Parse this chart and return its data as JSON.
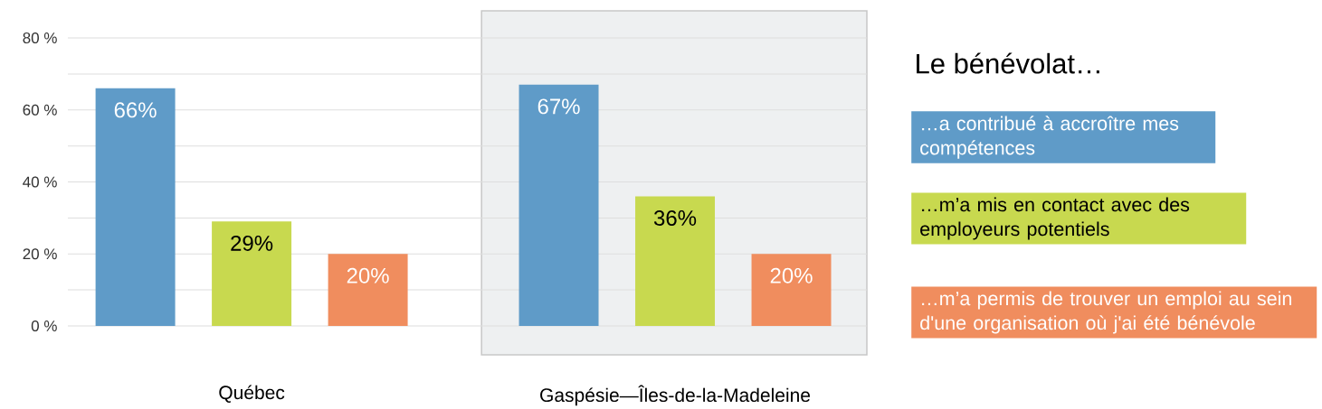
{
  "chart_data": {
    "type": "bar",
    "legend_title": "Le bénévolat…",
    "categories": [
      "Québec",
      "Gaspésie—Îles-de-la-Madeleine"
    ],
    "series": [
      {
        "name": "…a contribué à accroître mes compétences",
        "color": "#5f9bc8",
        "values": [
          66,
          67
        ],
        "value_labels": [
          "66%",
          "67%"
        ]
      },
      {
        "name": "…m’a mis en contact avec des employeurs potentiels",
        "color": "#c8d94f",
        "values": [
          29,
          36
        ],
        "value_labels": [
          "29%",
          "36%"
        ]
      },
      {
        "name": "…m’a permis de trouver un emploi au sein d'une organisation où j'ai été bénévole",
        "color": "#f08d5e",
        "values": [
          20,
          20
        ],
        "value_labels": [
          "20%",
          "20%"
        ]
      }
    ],
    "ylim": [
      0,
      80
    ],
    "yticks": [
      {
        "value": 0,
        "label": "0 %"
      },
      {
        "value": 10,
        "label": null
      },
      {
        "value": 20,
        "label": "20 %"
      },
      {
        "value": 30,
        "label": null
      },
      {
        "value": 40,
        "label": "40 %"
      },
      {
        "value": 50,
        "label": null
      },
      {
        "value": 60,
        "label": "60 %"
      },
      {
        "value": 70,
        "label": null
      },
      {
        "value": 80,
        "label": "80 %"
      }
    ],
    "grid": "y",
    "legend": "right",
    "bands": [
      {
        "axis": "x",
        "from": "Gaspésie—Îles-de-la-Madeleine",
        "to": "Gaspésie—Îles-de-la-Madeleine",
        "color": "#eef0f1"
      }
    ]
  }
}
